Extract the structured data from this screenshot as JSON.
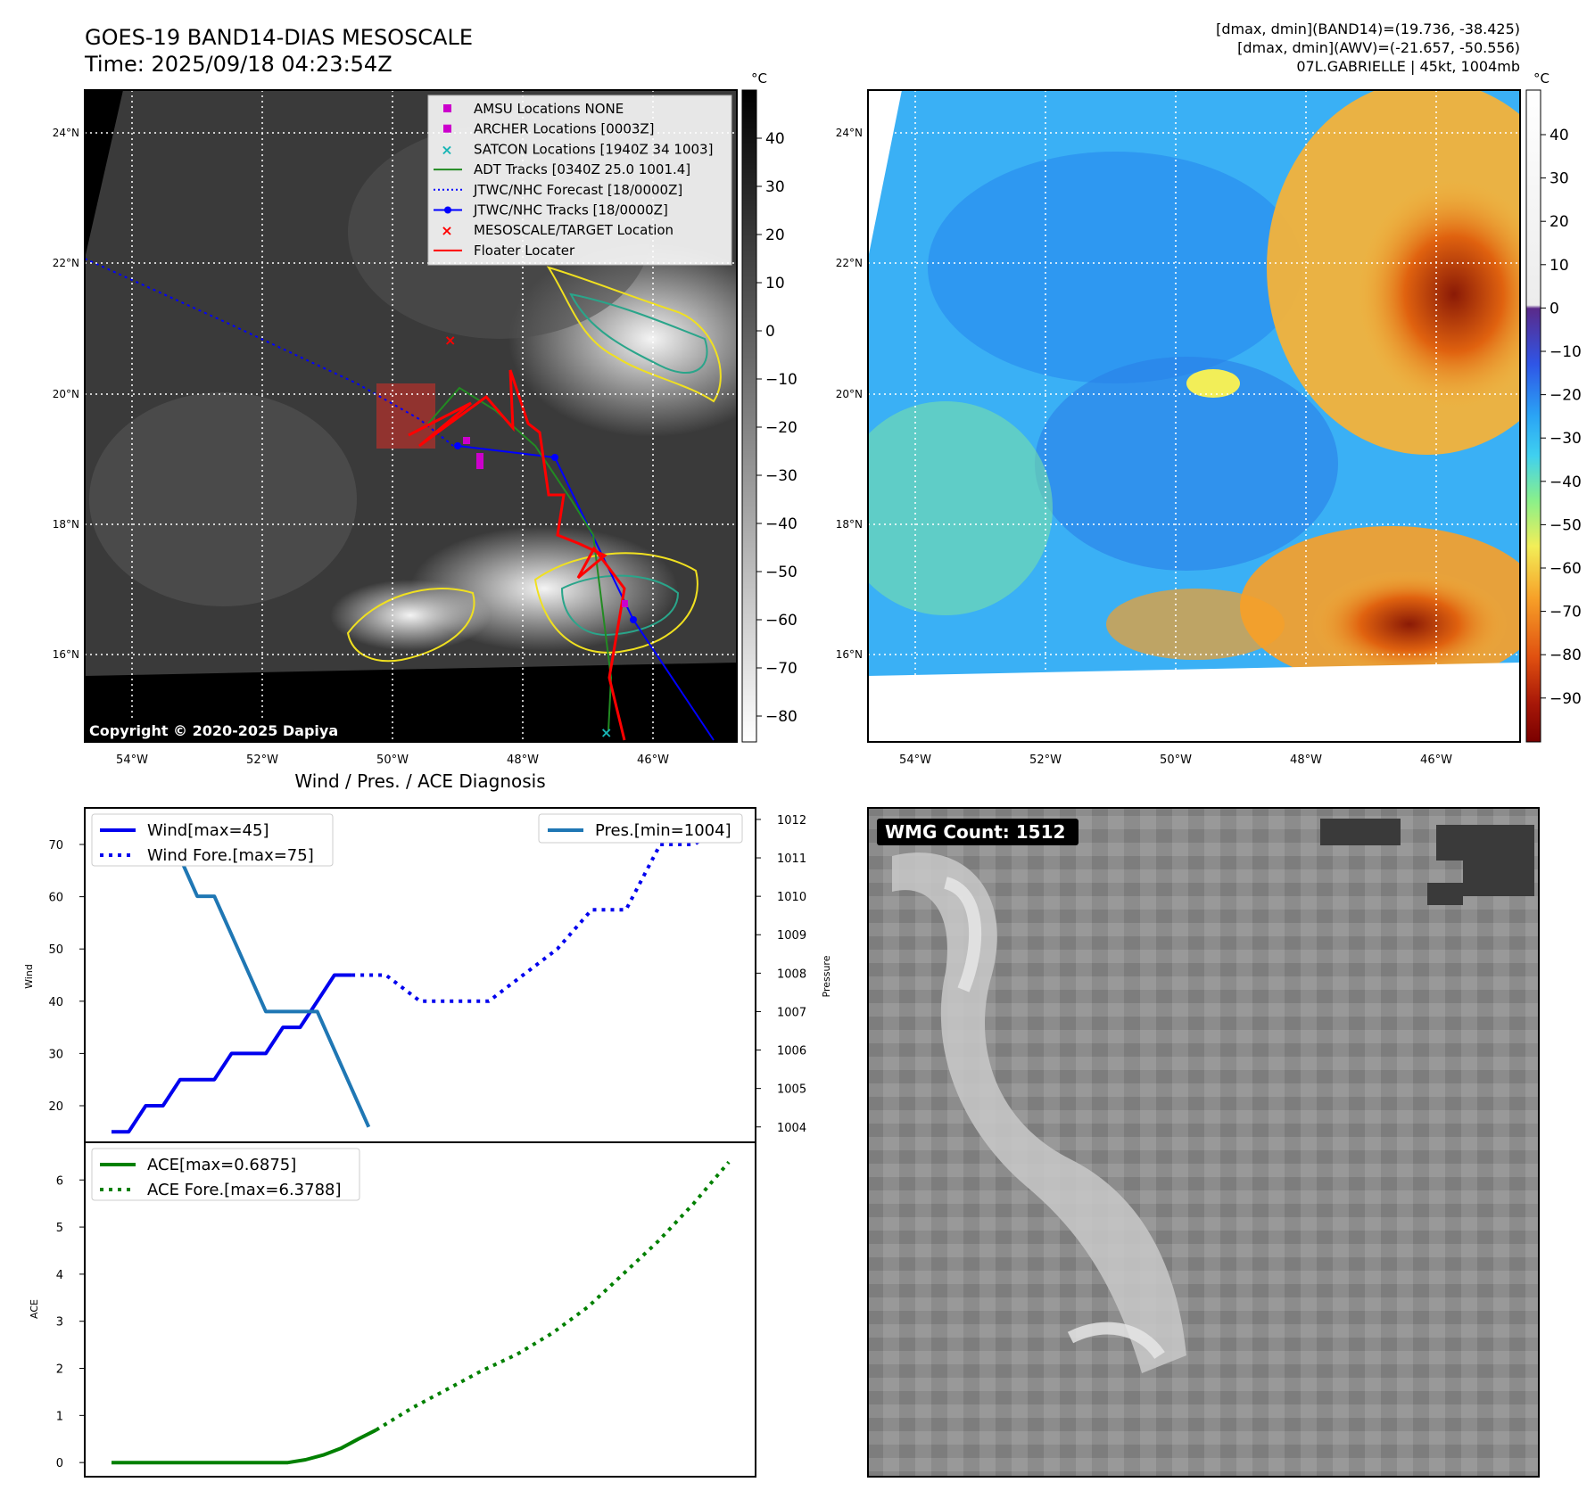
{
  "header": {
    "title_line1": "GOES-19 BAND14-DIAS MESOSCALE",
    "title_line2": "Time: 2025/09/18 04:23:54Z",
    "info_line1": "[dmax, dmin](BAND14)=(19.736, -38.425)",
    "info_line2": "[dmax, dmin](AWV)=(-21.657, -50.556)",
    "info_line3": "07L.GABRIELLE | 45kt, 1004mb"
  },
  "copyright": "Copyright © 2020-2025 Dapiya",
  "wmg_label": "WMG Count: 1512",
  "colors": {
    "wind": "#0000ee",
    "pressure": "#1f77b4",
    "ace": "#008000",
    "amsu": "#cc00cc",
    "archer": "#cc00cc",
    "satcon": "#17b5b5",
    "adt": "#228b22",
    "jtwc_forecast": "#0000ff",
    "jtwc_tracks": "#0000ff",
    "target": "#ff0000",
    "floater": "#ff0000"
  },
  "map": {
    "lon_ticks": [
      "54°W",
      "52°W",
      "50°W",
      "48°W",
      "46°W"
    ],
    "lat_ticks": [
      "24°N",
      "22°N",
      "20°N",
      "18°N",
      "16°N"
    ],
    "cbar1_unit": "°C",
    "cbar1_ticks": [
      "40",
      "30",
      "20",
      "10",
      "0",
      "−10",
      "−20",
      "−30",
      "−40",
      "−50",
      "−60",
      "−70",
      "−80"
    ],
    "cbar2_unit": "°C",
    "cbar2_ticks": [
      "40",
      "30",
      "20",
      "10",
      "0",
      "−10",
      "−20",
      "−30",
      "−40",
      "−50",
      "−60",
      "−70",
      "−80",
      "−90"
    ],
    "legend": [
      {
        "label": "AMSU Locations NONE",
        "kind": "square",
        "color": "#cc00cc"
      },
      {
        "label": "ARCHER Locations [0003Z]",
        "kind": "square",
        "color": "#cc00cc"
      },
      {
        "label": "SATCON Locations [1940Z 34 1003]",
        "kind": "x",
        "color": "#17b5b5"
      },
      {
        "label": "ADT Tracks [0340Z 25.0 1001.4]",
        "kind": "line",
        "color": "#228b22"
      },
      {
        "label": "JTWC/NHC Forecast [18/0000Z]",
        "kind": "dotted",
        "color": "#0000ff"
      },
      {
        "label": "JTWC/NHC Tracks [18/0000Z]",
        "kind": "linedot",
        "color": "#0000ff"
      },
      {
        "label": "MESOSCALE/TARGET Location",
        "kind": "x",
        "color": "#ff0000"
      },
      {
        "label": "Floater Locater",
        "kind": "line",
        "color": "#ff0000"
      }
    ]
  },
  "chart_data": [
    {
      "type": "line",
      "title": "Wind / Pres. / ACE Diagnosis",
      "ylabel": "Wind",
      "ylabel_right": "Pressure",
      "ylim": [
        13,
        77
      ],
      "ylim_right": [
        1003.6,
        1012.3
      ],
      "yticks": [
        20,
        30,
        40,
        50,
        60,
        70
      ],
      "yticks_right": [
        1004,
        1005,
        1006,
        1007,
        1008,
        1009,
        1010,
        1011,
        1012
      ],
      "legend_left": [
        "Wind[max=45]",
        "Wind Fore.[max=75]"
      ],
      "legend_right": [
        "Pres.[min=1004]"
      ],
      "series": [
        {
          "name": "Wind[max=45]",
          "axis": "left",
          "style": "solid",
          "x": [
            0,
            1,
            2,
            3,
            4,
            5,
            6,
            7,
            8,
            9,
            10,
            11,
            12,
            13,
            14,
            15,
            16
          ],
          "values": [
            15,
            15,
            20,
            20,
            25,
            25,
            25,
            30,
            30,
            30,
            35,
            35,
            40,
            45,
            45,
            null,
            null
          ]
        },
        {
          "name": "Wind Fore.[max=75]",
          "axis": "left",
          "style": "dotted",
          "x": [
            14,
            16,
            18,
            20,
            22,
            24,
            26,
            28,
            30,
            32,
            34,
            36
          ],
          "values": [
            45,
            45,
            40,
            40,
            40,
            45,
            50,
            57.5,
            57.5,
            70,
            70,
            75
          ]
        },
        {
          "name": "Pres.[min=1004]",
          "axis": "right",
          "style": "solid",
          "x": [
            1,
            2,
            3,
            4,
            5,
            6,
            7,
            8,
            9,
            10,
            11,
            12,
            13,
            14,
            15
          ],
          "values": [
            1012,
            1012,
            1011,
            1011,
            1010,
            1010,
            1009,
            1008,
            1007,
            1007,
            1007,
            1007,
            1006,
            1005,
            1004
          ]
        }
      ]
    },
    {
      "type": "line",
      "ylabel": "ACE",
      "ylim": [
        -0.3,
        6.8
      ],
      "yticks": [
        0,
        1,
        2,
        3,
        4,
        5,
        6
      ],
      "legend": [
        "ACE[max=0.6875]",
        "ACE Fore.[max=6.3788]"
      ],
      "series": [
        {
          "name": "ACE[max=0.6875]",
          "style": "solid",
          "x": [
            0,
            2,
            4,
            6,
            8,
            10,
            11,
            12,
            13,
            14,
            15
          ],
          "values": [
            0,
            0,
            0,
            0,
            0,
            0,
            0.06,
            0.16,
            0.3,
            0.5,
            0.69
          ]
        },
        {
          "name": "ACE Fore.[max=6.3788]",
          "style": "dotted",
          "x": [
            15,
            17,
            19,
            21,
            23,
            25,
            27,
            29,
            31,
            33,
            35
          ],
          "values": [
            0.69,
            1.15,
            1.55,
            1.95,
            2.3,
            2.75,
            3.3,
            4.0,
            4.7,
            5.5,
            6.38
          ]
        }
      ]
    }
  ]
}
